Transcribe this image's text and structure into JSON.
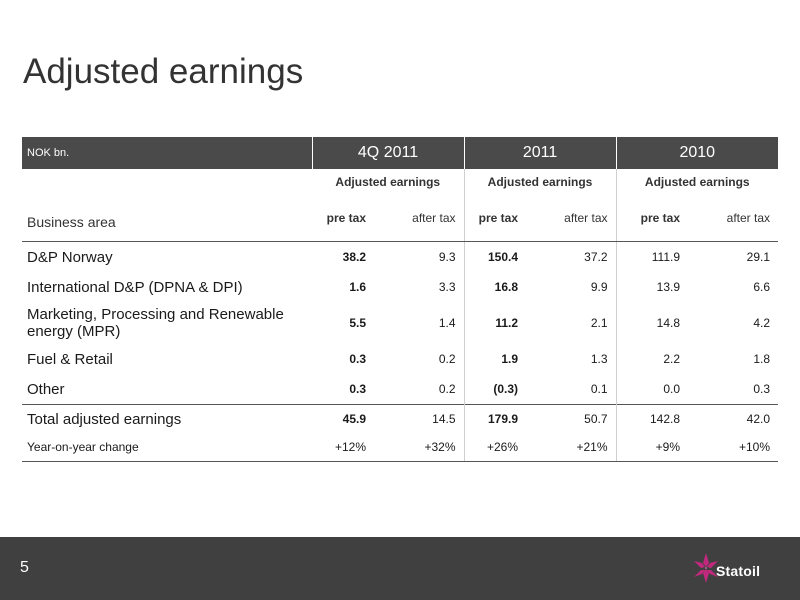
{
  "slide": {
    "title": "Adjusted earnings",
    "page_number": "5",
    "logo_text": "Statoil"
  },
  "table": {
    "unit": "NOK bn.",
    "periods": [
      "4Q 2011",
      "2011",
      "2010"
    ],
    "group_label": "Adjusted earnings",
    "business_area_label": "Business area",
    "pre_tax_label": "pre tax",
    "after_tax_label": "after tax",
    "rows": [
      {
        "label": "D&P Norway",
        "values": [
          "38.2",
          "9.3",
          "150.4",
          "37.2",
          "111.9",
          "29.1"
        ]
      },
      {
        "label": "International D&P (DPNA & DPI)",
        "values": [
          "1.6",
          "3.3",
          "16.8",
          "9.9",
          "13.9",
          "6.6"
        ]
      },
      {
        "label": "Marketing, Processing and Renewable energy (MPR)",
        "values": [
          "5.5",
          "1.4",
          "11.2",
          "2.1",
          "14.8",
          "4.2"
        ]
      },
      {
        "label": "Fuel & Retail",
        "values": [
          "0.3",
          "0.2",
          "1.9",
          "1.3",
          "2.2",
          "1.8"
        ]
      },
      {
        "label": "Other",
        "values": [
          "0.3",
          "0.2",
          "(0.3)",
          "0.1",
          "0.0",
          "0.3"
        ]
      }
    ],
    "total": {
      "label": "Total adjusted earnings",
      "values": [
        "45.9",
        "14.5",
        "179.9",
        "50.7",
        "142.8",
        "42.0"
      ]
    },
    "yoy": {
      "label": "Year-on-year change",
      "values": [
        "+12%",
        "+32%",
        "+26%",
        "+21%",
        "+9%",
        "+10%"
      ]
    }
  },
  "colors": {
    "header_bg": "#4a4a4a",
    "footer_bg": "#404040",
    "logo_accent": "#c2297e"
  }
}
